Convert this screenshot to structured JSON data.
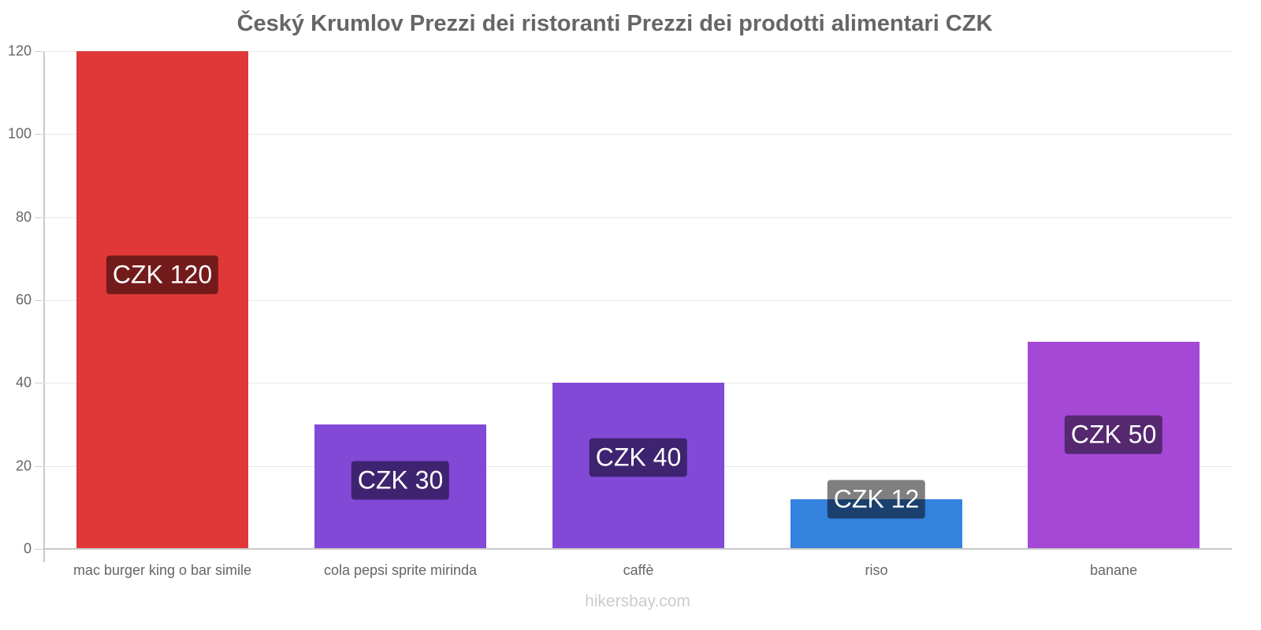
{
  "chart_data": {
    "type": "bar",
    "title": "Český Krumlov Prezzi dei ristoranti Prezzi dei prodotti alimentari CZK",
    "xlabel": "",
    "ylabel": "",
    "ylim": [
      0,
      120
    ],
    "yticks": [
      0,
      20,
      40,
      60,
      80,
      100,
      120
    ],
    "grid": true,
    "legend": null,
    "categories": [
      "mac burger king o bar simile",
      "cola pepsi sprite mirinda",
      "caffè",
      "riso",
      "banane"
    ],
    "values": [
      120,
      30,
      40,
      12,
      50
    ],
    "value_labels": [
      "CZK 120",
      "CZK 30",
      "CZK 40",
      "CZK 12",
      "CZK 50"
    ],
    "colors": [
      "#e03838",
      "#8249d6",
      "#8249d6",
      "#3581de",
      "#a648d6"
    ],
    "label_colors": [
      "#731b1b",
      "#3e2470",
      "#3e2470",
      "#1c406e",
      "#552870"
    ]
  },
  "footer": "hikersbay.com"
}
